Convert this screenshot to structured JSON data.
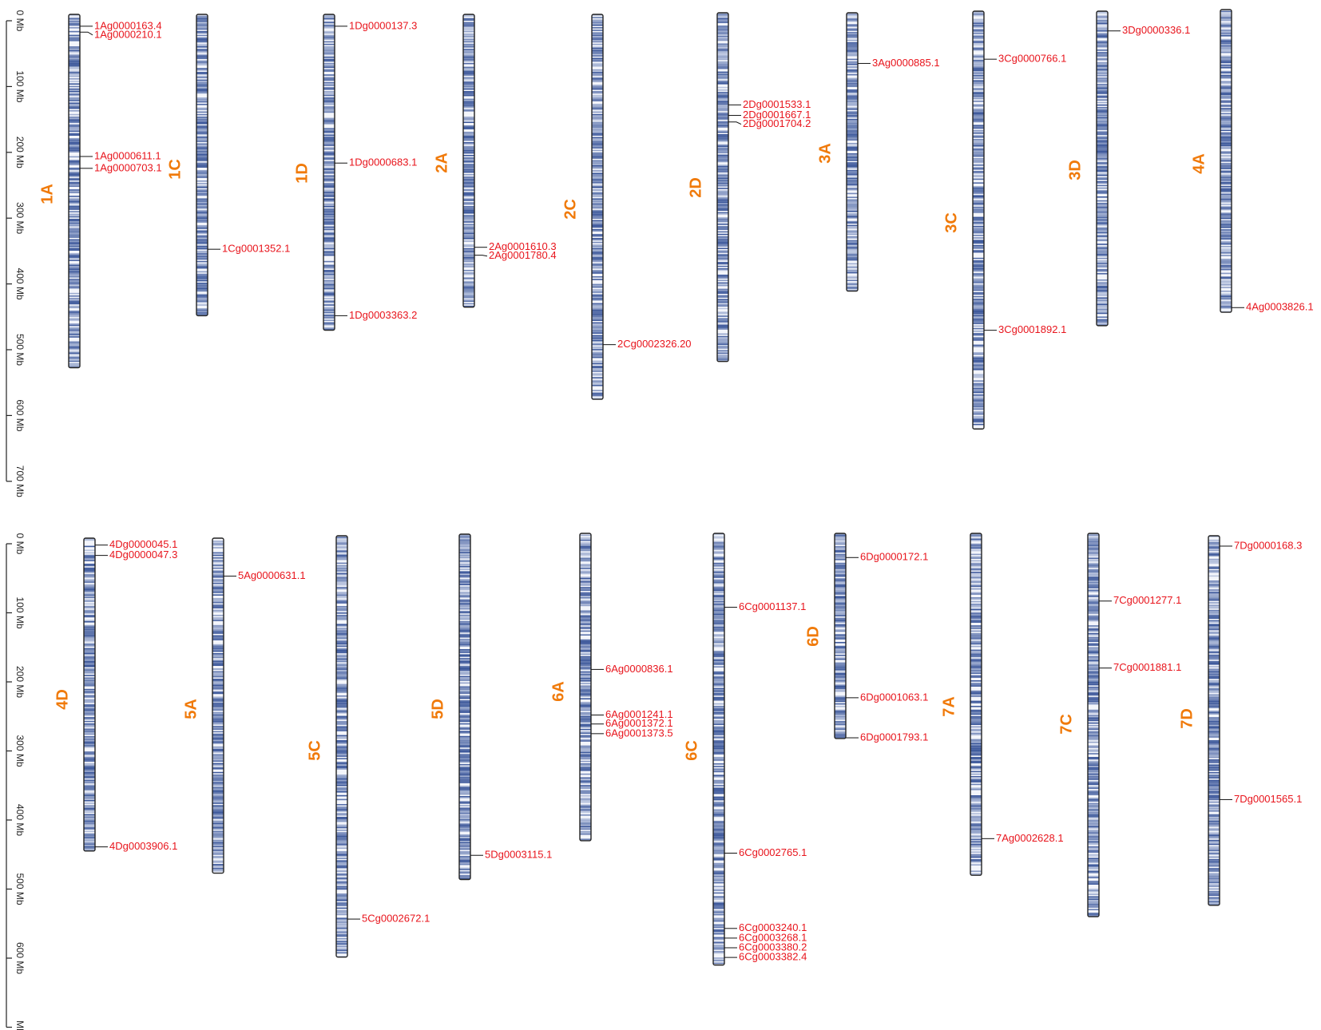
{
  "colors": {
    "chromosome_label": "#f07a0a",
    "gene_label": "#e8141c",
    "leader_line": "#111111",
    "band_dark": "#3f5a9c",
    "band_light": "#dfe5f3",
    "chromosome_outline": "#222222"
  },
  "panels": [
    {
      "id": "top",
      "axis_ticks": [
        "0 Mb",
        "100 Mb",
        "200 Mb",
        "300 Mb",
        "400 Mb",
        "500 Mb",
        "600 Mb",
        "700 Mb"
      ],
      "chromosomes": [
        {
          "name": "1A",
          "length": 537,
          "genes": [
            {
              "id": "1Ag0000163.4",
              "pos": 18
            },
            {
              "id": "1Ag0000210.1",
              "pos": 27
            },
            {
              "id": "1Ag0000611.1",
              "pos": 216
            },
            {
              "id": "1Ag0000703.1",
              "pos": 234
            }
          ]
        },
        {
          "name": "1C",
          "length": 458,
          "genes": [
            {
              "id": "1Cg0001352.1",
              "pos": 357
            }
          ]
        },
        {
          "name": "1D",
          "length": 480,
          "genes": [
            {
              "id": "1Dg0000137.3",
              "pos": 18
            },
            {
              "id": "1Dg0000683.1",
              "pos": 226
            },
            {
              "id": "1Dg0003363.2",
              "pos": 458
            }
          ]
        },
        {
          "name": "2A",
          "length": 445,
          "genes": [
            {
              "id": "2Ag0001610.3",
              "pos": 354
            },
            {
              "id": "2Ag0001780.4",
              "pos": 366
            }
          ]
        },
        {
          "name": "2C",
          "length": 585,
          "genes": [
            {
              "id": "2Cg0002326.20",
              "pos": 502
            }
          ]
        },
        {
          "name": "2D",
          "length": 530,
          "genes": [
            {
              "id": "2Dg0001533.1",
              "pos": 140
            },
            {
              "id": "2Dg0001667.1",
              "pos": 156
            },
            {
              "id": "2Dg0001704.2",
              "pos": 166
            }
          ]
        },
        {
          "name": "3A",
          "length": 423,
          "genes": [
            {
              "id": "3Ag0000885.1",
              "pos": 77
            }
          ]
        },
        {
          "name": "3C",
          "length": 635,
          "genes": [
            {
              "id": "3Cg0000766.1",
              "pos": 73
            },
            {
              "id": "3Cg0001892.1",
              "pos": 485
            }
          ]
        },
        {
          "name": "3D",
          "length": 478,
          "genes": [
            {
              "id": "3Dg0000336.1",
              "pos": 30
            }
          ]
        },
        {
          "name": "4A",
          "length": 460,
          "genes": [
            {
              "id": "4Ag0003826.1",
              "pos": 453
            }
          ]
        }
      ]
    },
    {
      "id": "bottom",
      "axis_ticks": [
        "0 Mb",
        "100 Mb",
        "200 Mb",
        "300 Mb",
        "400 Mb",
        "500 Mb",
        "600 Mb",
        "Mb"
      ],
      "chromosomes": [
        {
          "name": "4D",
          "length": 453,
          "genes": [
            {
              "id": "4Dg0000045.1",
              "pos": 10
            },
            {
              "id": "4Dg0000047.3",
              "pos": 25
            },
            {
              "id": "4Dg0003906.1",
              "pos": 447
            }
          ]
        },
        {
          "name": "5A",
          "length": 485,
          "genes": [
            {
              "id": "5Ag0000631.1",
              "pos": 55
            }
          ]
        },
        {
          "name": "5C",
          "length": 610,
          "genes": [
            {
              "id": "5Cg0002672.1",
              "pos": 555
            }
          ]
        },
        {
          "name": "5D",
          "length": 500,
          "genes": [
            {
              "id": "5Dg0003115.1",
              "pos": 465
            }
          ]
        },
        {
          "name": "6A",
          "length": 445,
          "genes": [
            {
              "id": "6Ag0000836.1",
              "pos": 197
            },
            {
              "id": "6Ag0001241.1",
              "pos": 263
            },
            {
              "id": "6Ag0001372.1",
              "pos": 276
            },
            {
              "id": "6Ag0001373.5",
              "pos": 290
            }
          ]
        },
        {
          "name": "6C",
          "length": 625,
          "genes": [
            {
              "id": "6Cg0001137.1",
              "pos": 107
            },
            {
              "id": "6Cg0002765.1",
              "pos": 463
            },
            {
              "id": "6Cg0003240.1",
              "pos": 572
            },
            {
              "id": "6Cg0003268.1",
              "pos": 586
            },
            {
              "id": "6Cg0003380.2",
              "pos": 600
            },
            {
              "id": "6Cg0003382.4",
              "pos": 614
            }
          ]
        },
        {
          "name": "6D",
          "length": 297,
          "genes": [
            {
              "id": "6Dg0000172.1",
              "pos": 35
            },
            {
              "id": "6Dg0001063.1",
              "pos": 238
            },
            {
              "id": "6Dg0001793.1",
              "pos": 296
            }
          ]
        },
        {
          "name": "7A",
          "length": 495,
          "genes": [
            {
              "id": "7Ag0002628.1",
              "pos": 442
            }
          ]
        },
        {
          "name": "7C",
          "length": 555,
          "genes": [
            {
              "id": "7Cg0001277.1",
              "pos": 98
            },
            {
              "id": "7Cg0001881.1",
              "pos": 195
            }
          ]
        },
        {
          "name": "7D",
          "length": 535,
          "genes": [
            {
              "id": "7Dg0000168.3",
              "pos": 15
            },
            {
              "id": "7Dg0001565.1",
              "pos": 382
            }
          ]
        }
      ]
    }
  ]
}
